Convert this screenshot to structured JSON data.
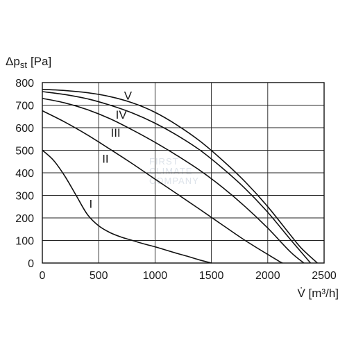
{
  "chart_data": {
    "type": "line",
    "ylabel": "Δp",
    "ylabel_sub": "st",
    "ylabel_unit": "[Pa]",
    "xlabel": "V̇ [m³/h]",
    "xlim": [
      0,
      2500
    ],
    "ylim": [
      0,
      800
    ],
    "xticks": [
      0,
      500,
      1000,
      1500,
      2000,
      2500
    ],
    "yticks": [
      0,
      100,
      200,
      300,
      400,
      500,
      600,
      700,
      800
    ],
    "grid": true,
    "series": [
      {
        "name": "I",
        "x": [
          0,
          100,
          200,
          300,
          400,
          500,
          600,
          700,
          800,
          900,
          1000,
          1100,
          1200,
          1300,
          1400,
          1500
        ],
        "y": [
          500,
          455,
          385,
          300,
          215,
          165,
          135,
          115,
          100,
          85,
          72,
          57,
          42,
          28,
          13,
          0
        ]
      },
      {
        "name": "II",
        "x": [
          0,
          200,
          400,
          600,
          800,
          1000,
          1200,
          1400,
          1600,
          1800,
          2000,
          2100,
          2130
        ],
        "y": [
          675,
          625,
          568,
          505,
          440,
          372,
          305,
          237,
          168,
          100,
          38,
          8,
          0
        ]
      },
      {
        "name": "III",
        "x": [
          0,
          200,
          400,
          600,
          800,
          1000,
          1200,
          1400,
          1600,
          1800,
          2000,
          2200,
          2320
        ],
        "y": [
          730,
          710,
          680,
          640,
          590,
          535,
          475,
          410,
          335,
          250,
          155,
          50,
          0
        ]
      },
      {
        "name": "IV",
        "x": [
          0,
          200,
          400,
          600,
          800,
          1000,
          1200,
          1400,
          1600,
          1800,
          2000,
          2200,
          2380
        ],
        "y": [
          760,
          747,
          728,
          700,
          665,
          620,
          565,
          500,
          420,
          330,
          225,
          105,
          0
        ]
      },
      {
        "name": "V",
        "x": [
          0,
          200,
          400,
          600,
          800,
          1000,
          1200,
          1400,
          1600,
          1800,
          2000,
          2200,
          2300,
          2440
        ],
        "y": [
          770,
          765,
          755,
          738,
          710,
          668,
          610,
          540,
          455,
          360,
          250,
          125,
          65,
          0
        ]
      }
    ],
    "curve_labels": [
      {
        "text": "I",
        "x": 430,
        "y": 245
      },
      {
        "text": "II",
        "x": 560,
        "y": 445
      },
      {
        "text": "III",
        "x": 650,
        "y": 560
      },
      {
        "text": "IV",
        "x": 700,
        "y": 640
      },
      {
        "text": "V",
        "x": 760,
        "y": 725
      }
    ],
    "watermark": [
      "FIRST",
      "CLIMATE",
      "COMPANY"
    ]
  }
}
